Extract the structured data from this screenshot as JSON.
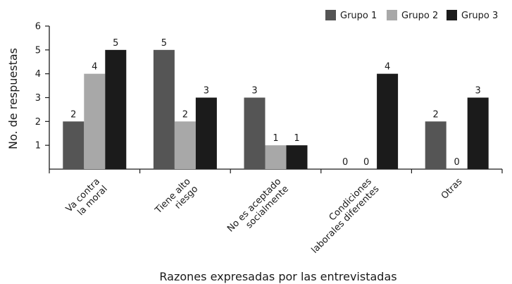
{
  "chart_data": {
    "type": "bar",
    "categories": [
      [
        "Va contra",
        "la moral"
      ],
      [
        "Tiene alto",
        "riesgo"
      ],
      [
        "No es aceptado",
        "socialmente"
      ],
      [
        "Condiciones",
        "laborales diferentes"
      ],
      [
        "Otras"
      ]
    ],
    "series": [
      {
        "name": "Grupo 1",
        "color": "#555555",
        "values": [
          2,
          5,
          3,
          0,
          2
        ]
      },
      {
        "name": "Grupo 2",
        "color": "#a8a8a8",
        "values": [
          4,
          2,
          1,
          0,
          0
        ]
      },
      {
        "name": "Grupo 3",
        "color": "#1b1b1b",
        "values": [
          5,
          3,
          1,
          4,
          3
        ]
      }
    ],
    "xlabel": "Razones expresadas por las entrevistadas",
    "ylabel": "No. de respuestas",
    "ylim": [
      0,
      6
    ],
    "yticks": [
      1,
      2,
      3,
      4,
      5,
      6
    ],
    "legend_position": "top-right",
    "grid": false
  }
}
